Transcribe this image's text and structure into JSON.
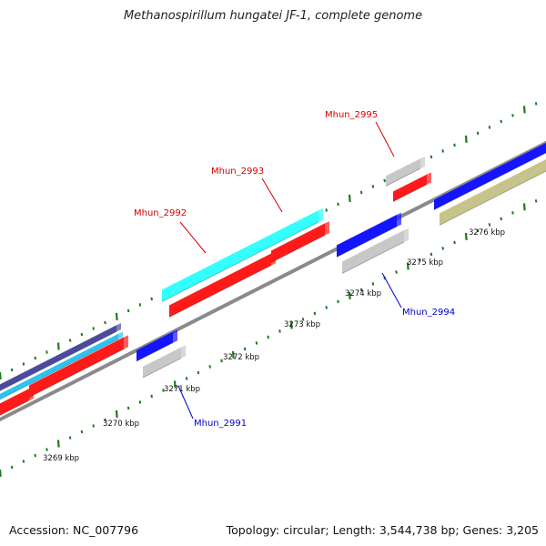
{
  "title": "Methanospirillum hungatei JF-1, complete genome",
  "footer": {
    "accession": "Accession: NC_007796",
    "summary": "Topology: circular; Length: 3,544,738 bp; Genes: 3,205"
  },
  "colors": {
    "backbone": "#8a8a8a",
    "tick": "#1e7a1e",
    "label_forward": "#d40000",
    "label_reverse": "#0000c8",
    "gene_red": "#ff1a1a",
    "gene_cyan": "#33ffff",
    "gene_blue": "#1414ff",
    "gene_gray": "#c8c8c8",
    "gene_olive": "#c8c38a",
    "gene_indigo": "#4b4b9e",
    "gene_skyblue": "#2bc4ee"
  },
  "kbp_labels": [
    "3269 kbp",
    "3270 kbp",
    "3271 kbp",
    "3272 kbp",
    "3273 kbp",
    "3274 kbp",
    "3275 kbp",
    "3276 kbp"
  ],
  "gene_labels": [
    {
      "text": "Mhun_2992",
      "strand": "forward"
    },
    {
      "text": "Mhun_2993",
      "strand": "forward"
    },
    {
      "text": "Mhun_2995",
      "strand": "forward"
    },
    {
      "text": "Mhun_2991",
      "strand": "reverse"
    },
    {
      "text": "Mhun_2994",
      "strand": "reverse"
    }
  ]
}
